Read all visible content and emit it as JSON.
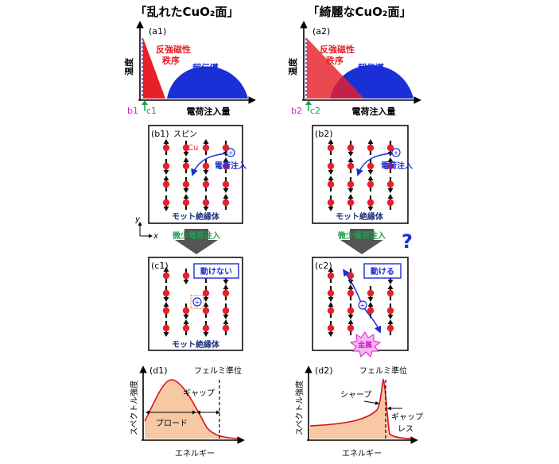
{
  "headers": {
    "left": "「乱れたCuO₂面」",
    "right": "「綺麗なCuO₂面」"
  },
  "phase": {
    "left": {
      "label": "(a1)",
      "y_axis": "温度",
      "x_axis": "電荷注入量",
      "afm": "反強磁性\n秩序",
      "sc": "超伝導",
      "mark_b": "b1",
      "mark_c": "c1"
    },
    "right": {
      "label": "(a2)",
      "y_axis": "温度",
      "x_axis": "電荷注入量",
      "afm": "反強磁性\n秩序",
      "sc": "超伝導",
      "mark_b": "b2",
      "mark_c": "c2"
    }
  },
  "spin_b": {
    "left": {
      "label": "(b1)",
      "spin": "スピン",
      "cu": "Cu",
      "charge_inject": "電荷注入",
      "mott": "モット絶縁体"
    },
    "right": {
      "label": "(b2)",
      "charge_inject": "電荷注入",
      "mott": "モット絶縁体"
    }
  },
  "axes_legend": {
    "x": "x",
    "y": "y"
  },
  "transition": {
    "label": "微少電荷注入",
    "question": "?"
  },
  "spin_c": {
    "left": {
      "label": "(c1)",
      "box": "動けない",
      "mott": "モット絶縁体"
    },
    "right": {
      "label": "(c2)",
      "box": "動ける",
      "metal": "金属"
    }
  },
  "spectra": {
    "left": {
      "label": "(d1)",
      "y_axis": "スペクトル強度",
      "x_axis": "エネルギー",
      "fermi": "フェルミ準位",
      "gap": "ギャップ",
      "broad": "ブロード"
    },
    "right": {
      "label": "(d2)",
      "y_axis": "スペクトル強度",
      "x_axis": "エネルギー",
      "fermi": "フェルミ準位",
      "sharp": "シャープ",
      "gapless": "ギャップ\nレス"
    }
  },
  "colors": {
    "afm": "#e8202a",
    "sc": "#1a2fd6",
    "inject": "#1a2fd6",
    "green": "#1aa14a",
    "fill": "#f6c8a4",
    "curve": "#d8141e",
    "magenta": "#d81ad8",
    "navy": "#1b2f7c"
  }
}
